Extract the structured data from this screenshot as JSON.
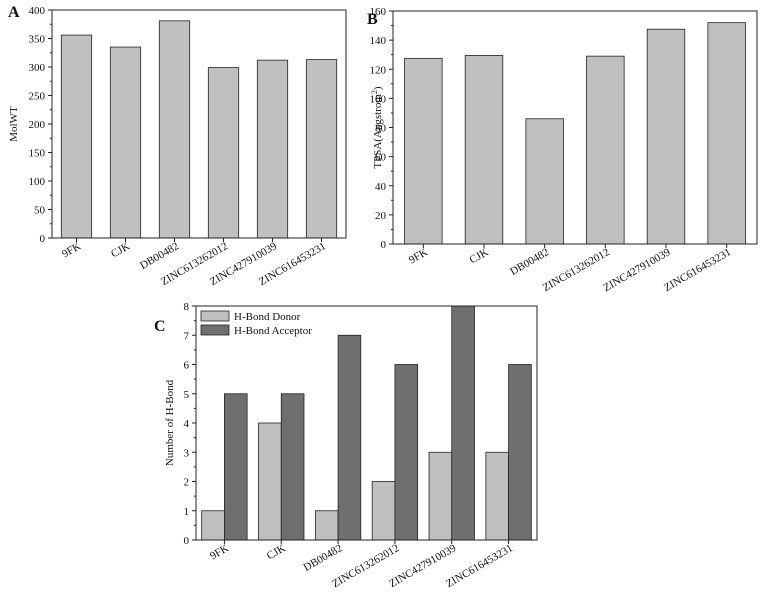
{
  "chart_data": [
    {
      "panel": "A",
      "type": "bar",
      "ylabel": "MolWT",
      "xlabel": "",
      "categories": [
        "9FK",
        "CJK",
        "DB00482",
        "ZINC613262012",
        "ZINC427910039",
        "ZINC616453231"
      ],
      "values": [
        356,
        335,
        381,
        299,
        312,
        313
      ],
      "ylim": [
        0,
        400
      ],
      "yticks": [
        0,
        50,
        100,
        150,
        200,
        250,
        300,
        350,
        400
      ],
      "bar_color": "#c0c0c0"
    },
    {
      "panel": "B",
      "type": "bar",
      "ylabel": "TPSA(Angstrom",
      "ylabel_sup": "2",
      "ylabel_close": ")",
      "xlabel": "",
      "categories": [
        "9FK",
        "CJK",
        "DB00482",
        "ZINC613262012",
        "ZINC427910039",
        "ZINC616453231"
      ],
      "values": [
        127.5,
        129.5,
        86,
        129,
        147.5,
        152
      ],
      "ylim": [
        0,
        160
      ],
      "yticks": [
        0,
        20,
        40,
        60,
        80,
        100,
        120,
        140,
        160
      ],
      "bar_color": "#c0c0c0"
    },
    {
      "panel": "C",
      "type": "bar",
      "ylabel": "Number of H-Bond",
      "xlabel": "",
      "categories": [
        "9FK",
        "CJK",
        "DB00482",
        "ZINC613262012",
        "ZINC427910039",
        "ZINC616453231"
      ],
      "series": [
        {
          "name": "H-Bond Donor",
          "values": [
            1,
            4,
            1,
            2,
            3,
            3
          ],
          "color": "#c0c0c0"
        },
        {
          "name": "H-Bond Acceptor",
          "values": [
            5,
            5,
            7,
            6,
            8,
            6
          ],
          "color": "#6f6f6f"
        }
      ],
      "ylim": [
        0,
        8
      ],
      "yticks": [
        0,
        1,
        2,
        3,
        4,
        5,
        6,
        7,
        8
      ],
      "legend": "top-left"
    }
  ]
}
